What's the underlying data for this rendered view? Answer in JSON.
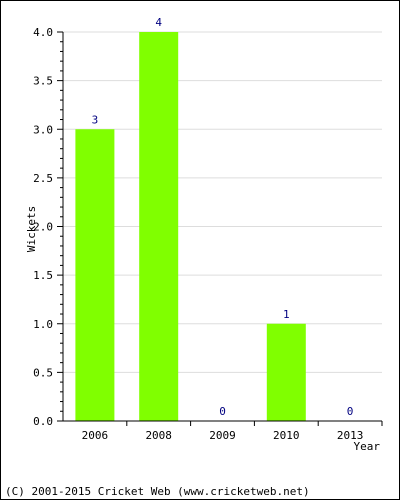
{
  "colors": {
    "bar": "#80ff00",
    "grid": "#dddddd",
    "axis": "#000000",
    "data_label": "#000080"
  },
  "chart_data": {
    "type": "bar",
    "categories": [
      "2006",
      "2008",
      "2009",
      "2010",
      "2013"
    ],
    "values": [
      3,
      4,
      0,
      1,
      0
    ],
    "data_labels": [
      "3",
      "4",
      "0",
      "1",
      "0"
    ],
    "xlabel": "Year",
    "ylabel": "Wickets",
    "ylim": [
      0,
      4
    ],
    "yticks": [
      "0.0",
      "0.5",
      "1.0",
      "1.5",
      "2.0",
      "2.5",
      "3.0",
      "3.5",
      "4.0"
    ],
    "grid": true,
    "legend": "none"
  },
  "footer": {
    "copyright": "(C) 2001-2015 Cricket Web (www.cricketweb.net)"
  }
}
